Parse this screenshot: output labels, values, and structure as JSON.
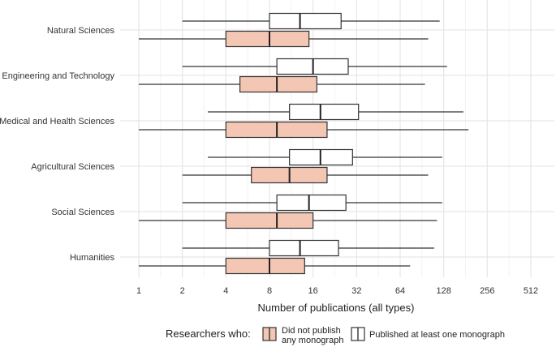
{
  "chart_data": {
    "type": "boxplot",
    "orientation": "horizontal",
    "xlabel": "Number of publications (all types)",
    "x_scale": "log2",
    "xlim": [
      1,
      512
    ],
    "x_ticks": [
      1,
      2,
      4,
      8,
      16,
      32,
      64,
      128,
      256,
      512
    ],
    "x_tick_labels": [
      "1",
      "2",
      "4",
      "8",
      "16",
      "32",
      "64",
      "128",
      "256",
      "512"
    ],
    "grid": true,
    "categories": [
      "Natural Sciences",
      "Engineering and Technology",
      "Medical and Health Sciences",
      "Agricultural Sciences",
      "Social Sciences",
      "Humanities"
    ],
    "legend": {
      "title": "Researchers who:",
      "position": "bottom",
      "entries": [
        {
          "label_lines": [
            "Did not publish",
            "any monograph"
          ],
          "color": "#f4c7b4"
        },
        {
          "label_lines": [
            "Published at least one monograph"
          ],
          "color": "#ffffff"
        }
      ]
    },
    "series": [
      {
        "fill": "#f4c7b4",
        "boxes": [
          {
            "min": 1,
            "q1": 4,
            "median": 8,
            "q3": 15,
            "max": 100
          },
          {
            "min": 1,
            "q1": 5,
            "median": 9,
            "q3": 17,
            "max": 95
          },
          {
            "min": 1,
            "q1": 4,
            "median": 9,
            "q3": 20,
            "max": 190
          },
          {
            "min": 2,
            "q1": 6,
            "median": 11,
            "q3": 20,
            "max": 100
          },
          {
            "min": 1,
            "q1": 4,
            "median": 9,
            "q3": 16,
            "max": 115
          },
          {
            "min": 1,
            "q1": 4,
            "median": 8,
            "q3": 14,
            "max": 75
          }
        ]
      },
      {
        "fill": "#ffffff",
        "boxes": [
          {
            "min": 2,
            "q1": 8,
            "median": 13,
            "q3": 25,
            "max": 120
          },
          {
            "min": 2,
            "q1": 9,
            "median": 16,
            "q3": 28,
            "max": 135
          },
          {
            "min": 3,
            "q1": 11,
            "median": 18,
            "q3": 33,
            "max": 175
          },
          {
            "min": 3,
            "q1": 11,
            "median": 18,
            "q3": 30,
            "max": 125
          },
          {
            "min": 2,
            "q1": 9,
            "median": 15,
            "q3": 27,
            "max": 125
          },
          {
            "min": 2,
            "q1": 8,
            "median": 13,
            "q3": 24,
            "max": 110
          }
        ]
      }
    ]
  }
}
